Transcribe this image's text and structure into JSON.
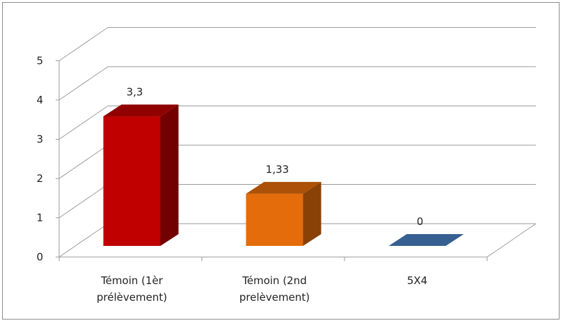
{
  "chart_data": {
    "type": "bar",
    "style": "3d-column",
    "categories": [
      "Témoin (1èr prélèvement)",
      "Témoin (2nd prélèvement)",
      "5X4"
    ],
    "category_lines": [
      [
        "Témoin (1èr",
        "prélèvement)"
      ],
      [
        "Témoin (2nd",
        "prelèvement)"
      ],
      [
        "5X4"
      ]
    ],
    "values": [
      3.3,
      1.33,
      0
    ],
    "data_labels": [
      "3,3",
      "1,33",
      "0"
    ],
    "bar_colors": [
      "#c00000",
      "#e46c0a",
      "#376092"
    ],
    "y_ticks": [
      "0",
      "1",
      "2",
      "3",
      "4",
      "5"
    ],
    "ylim": [
      0,
      5
    ],
    "grid": true,
    "legend": "none",
    "title": "",
    "xlabel": "",
    "ylabel": ""
  }
}
